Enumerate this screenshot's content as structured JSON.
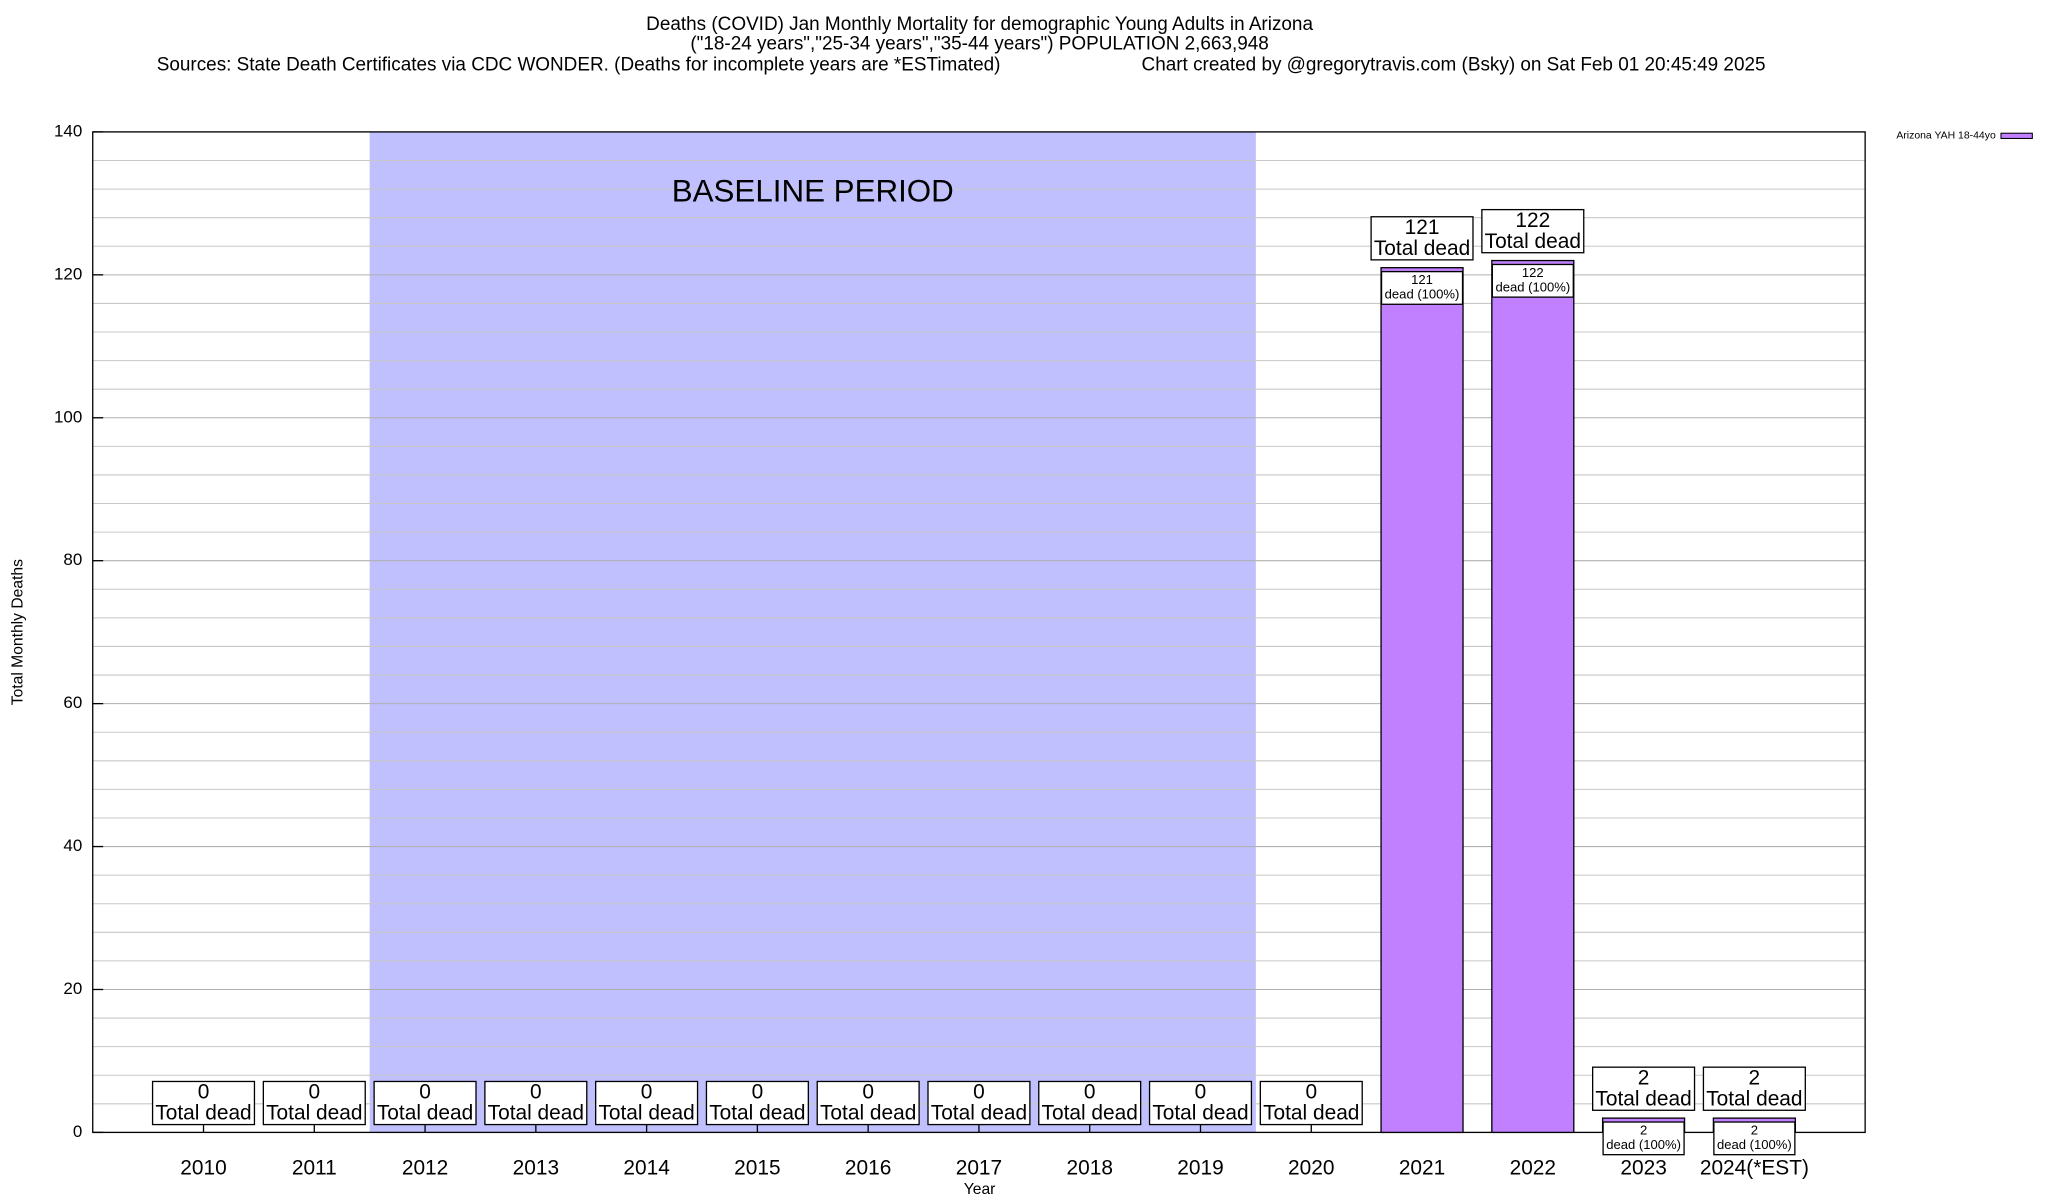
{
  "chart_data": {
    "type": "bar",
    "title": "Deaths (COVID) Jan Monthly Mortality for demographic Young Adults in Arizona",
    "subtitle": "(\"18-24 years\",\"25-34 years\",\"35-44 years\") POPULATION 2,663,948",
    "source": "Sources: State Death Certificates via CDC WONDER. (Deaths for incomplete years are *ESTimated)",
    "credit": "Chart created by @gregorytravis.com (Bsky) on Sat Feb 01 20:45:49 2025",
    "annotation": "BASELINE PERIOD",
    "total_label": "Total dead",
    "share_label": "dead (100%)",
    "x_label": "Year",
    "y_label": "Total Monthly Deaths",
    "categories": [
      "2010",
      "2011",
      "2012",
      "2013",
      "2014",
      "2015",
      "2016",
      "2017",
      "2018",
      "2019",
      "2020",
      "2021",
      "2022",
      "2023",
      "2024(*EST)"
    ],
    "series": [
      {
        "name": "Arizona YAH 18-44yo",
        "color": "#c080ff",
        "values": [
          0,
          0,
          0,
          0,
          0,
          0,
          0,
          0,
          0,
          0,
          0,
          121,
          122,
          2,
          2
        ]
      }
    ],
    "baseline_color": "#c0c0ff",
    "ylim": [
      0,
      140
    ],
    "yticks": [
      0,
      20,
      40,
      60,
      80,
      100,
      120,
      140
    ],
    "minor_yticks": [
      4,
      8,
      12,
      16,
      24,
      28,
      32,
      36,
      44,
      48,
      52,
      56,
      64,
      68,
      72,
      76,
      84,
      88,
      92,
      96,
      104,
      108,
      112,
      116,
      124,
      128,
      132,
      136
    ],
    "grid": true,
    "legend": "top-right"
  }
}
